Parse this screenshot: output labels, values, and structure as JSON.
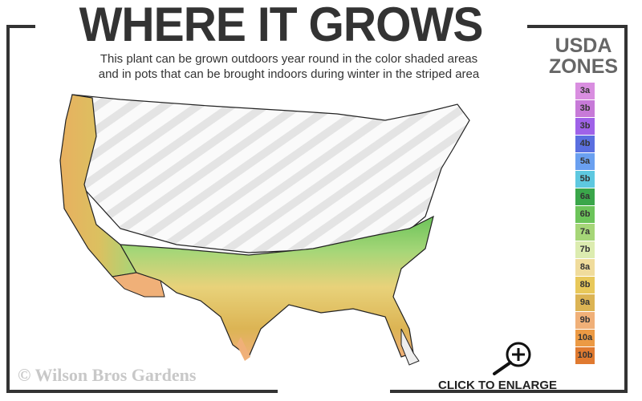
{
  "title": "WHERE IT GROWS",
  "subtitle_line1": "This plant can be grown outdoors year round in the color shaded areas",
  "subtitle_line2": "and in pots that can be brought indoors during winter in the striped area",
  "legend": {
    "title_line1": "USDA",
    "title_line2": "ZONES",
    "zones": [
      {
        "label": "3a",
        "color": "#d98ee0"
      },
      {
        "label": "3b",
        "color": "#c77ad8"
      },
      {
        "label": "3b",
        "color": "#9f62e8"
      },
      {
        "label": "4b",
        "color": "#5a6fe0"
      },
      {
        "label": "5a",
        "color": "#6aa0f0"
      },
      {
        "label": "5b",
        "color": "#5ec8e0"
      },
      {
        "label": "6a",
        "color": "#3aa64a"
      },
      {
        "label": "6b",
        "color": "#6cc45a"
      },
      {
        "label": "7a",
        "color": "#a6d678"
      },
      {
        "label": "7b",
        "color": "#dcecb0"
      },
      {
        "label": "8a",
        "color": "#f0dc9c"
      },
      {
        "label": "8b",
        "color": "#e8c85a"
      },
      {
        "label": "9a",
        "color": "#dcb454"
      },
      {
        "label": "9b",
        "color": "#f0b078"
      },
      {
        "label": "10a",
        "color": "#ec9a44"
      },
      {
        "label": "10b",
        "color": "#e07a30"
      }
    ]
  },
  "copyright": "© Wilson Bros Gardens",
  "enlarge": {
    "label": "CLICK TO ENLARGE",
    "icon": "zoom-in-icon"
  }
}
